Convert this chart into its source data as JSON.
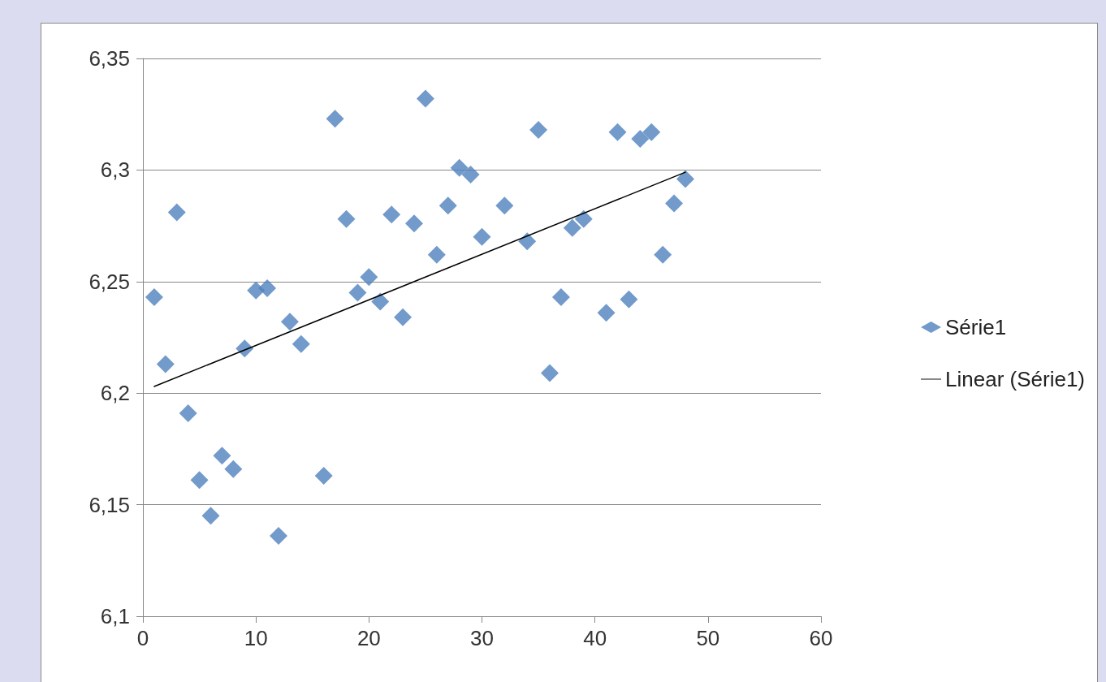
{
  "chart_data": {
    "type": "scatter",
    "marker": "diamond",
    "grid": "y",
    "legend": "right",
    "xlim": [
      0,
      60
    ],
    "xticks": [
      0,
      10,
      20,
      30,
      40,
      50,
      60
    ],
    "ylim": [
      6.1,
      6.35
    ],
    "yticks": [
      {
        "value": 6.1,
        "label": "6,1"
      },
      {
        "value": 6.15,
        "label": "6,15"
      },
      {
        "value": 6.2,
        "label": "6,2"
      },
      {
        "value": 6.25,
        "label": "6,25"
      },
      {
        "value": 6.3,
        "label": "6,3"
      },
      {
        "value": 6.35,
        "label": "6,35"
      }
    ],
    "series": [
      {
        "name": "Série1",
        "color": "#4f81bd",
        "x": [
          1,
          2,
          3,
          4,
          5,
          6,
          7,
          8,
          9,
          10,
          11,
          12,
          13,
          14,
          16,
          17,
          18,
          19,
          20,
          21,
          22,
          23,
          24,
          25,
          26,
          27,
          28,
          29,
          30,
          32,
          34,
          35,
          36,
          37,
          38,
          39,
          41,
          42,
          43,
          44,
          45,
          46,
          47,
          48
        ],
        "values": [
          6.243,
          6.213,
          6.281,
          6.191,
          6.161,
          6.145,
          6.172,
          6.166,
          6.22,
          6.246,
          6.247,
          6.136,
          6.232,
          6.222,
          6.163,
          6.323,
          6.278,
          6.245,
          6.252,
          6.241,
          6.28,
          6.234,
          6.276,
          6.332,
          6.262,
          6.284,
          6.301,
          6.298,
          6.27,
          6.284,
          6.268,
          6.318,
          6.209,
          6.243,
          6.274,
          6.278,
          6.236,
          6.317,
          6.242,
          6.314,
          6.317,
          6.262,
          6.285,
          6.296
        ]
      },
      {
        "name": "Linear (Série1)",
        "type": "line",
        "color": "#000000",
        "marker": "none",
        "line_style": "solid",
        "x": [
          1,
          48
        ],
        "values": [
          6.203,
          6.299
        ]
      }
    ]
  }
}
